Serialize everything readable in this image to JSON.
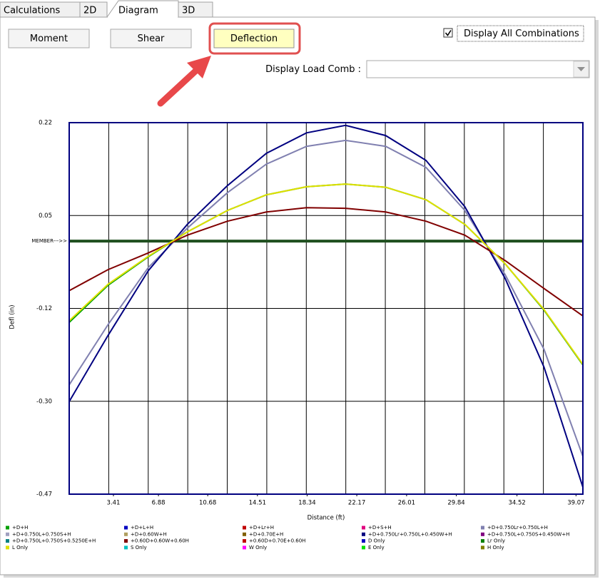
{
  "tabs": [
    {
      "label": "Calculations",
      "active": false
    },
    {
      "label": "2D",
      "active": false
    },
    {
      "label": "Diagram",
      "active": true
    },
    {
      "label": "3D",
      "active": false
    }
  ],
  "buttons": [
    {
      "label": "Moment",
      "highlighted": false
    },
    {
      "label": "Shear",
      "highlighted": false
    },
    {
      "label": "Deflection",
      "highlighted": true
    }
  ],
  "checkbox": {
    "label": "Display All Combinations",
    "checked": true
  },
  "dropdown": {
    "label": "Display Load Comb :"
  },
  "chart_data": {
    "type": "line",
    "x_label": "Distance (ft)",
    "y_label": "Defl (in)",
    "x": [
      0,
      3.0,
      6.1,
      9.1,
      12.2,
      15.2,
      18.3,
      21.3,
      24.4,
      27.5,
      30.5,
      33.6,
      36.6,
      39.6
    ],
    "xlim": [
      0,
      39.6
    ],
    "xticks": [
      3.41,
      6.88,
      10.68,
      14.51,
      18.34,
      22.17,
      26.01,
      29.84,
      34.52,
      39.07
    ],
    "ylim": [
      -0.47,
      0.22
    ],
    "yticks": [
      -0.47,
      {
        "value": -0.2975,
        "label": "-0.30"
      },
      {
        "value": -0.125,
        "label": "-0.12"
      },
      {
        "value": 0.0475,
        "label": "0.05"
      },
      0.22
    ],
    "grid": true,
    "member_line": {
      "label": "MEMBER--->>",
      "y": 0,
      "color": "#1f4f1f"
    },
    "series": [
      {
        "name": "+D+H",
        "color": "#00a000",
        "values": [
          -0.151,
          -0.082,
          -0.029,
          0.017,
          0.057,
          0.086,
          0.101,
          0.106,
          0.1,
          0.077,
          0.031,
          -0.042,
          -0.128,
          -0.23
        ]
      },
      {
        "name": "+D+L+H",
        "color": "#0000c0"
      },
      {
        "name": "+D+Lr+H",
        "color": "#c00000"
      },
      {
        "name": "+D+S+H",
        "color": "#e0007f"
      },
      {
        "name": "+D+0.750Lr+0.750L+H",
        "color": "#8080b0",
        "values": [
          -0.267,
          -0.155,
          -0.049,
          0.024,
          0.09,
          0.143,
          0.176,
          0.187,
          0.176,
          0.137,
          0.057,
          -0.062,
          -0.201,
          -0.4
        ]
      },
      {
        "name": "+D+0.750L+0.750S+H",
        "color": "#a0a0c0"
      },
      {
        "name": "+D+0.60W+H",
        "color": "#b0a060"
      },
      {
        "name": "+D+0.70E+H",
        "color": "#806000"
      },
      {
        "name": "+D+0.750Lr+0.750L+0.450W+H",
        "color": "#000080",
        "values": [
          -0.298,
          -0.175,
          -0.055,
          0.031,
          0.103,
          0.163,
          0.201,
          0.215,
          0.196,
          0.15,
          0.064,
          -0.069,
          -0.234,
          -0.457
        ]
      },
      {
        "name": "+D+0.750L+0.750S+0.450W+H",
        "color": "#800080"
      },
      {
        "name": "+D+0.750L+0.750S+0.5250E+H",
        "color": "#008080"
      },
      {
        "name": "+0.60D+0.60W+0.60H",
        "color": "#800000",
        "values": [
          -0.092,
          -0.053,
          -0.022,
          0.011,
          0.037,
          0.054,
          0.062,
          0.061,
          0.054,
          0.037,
          0.011,
          -0.036,
          -0.088,
          -0.139
        ]
      },
      {
        "name": "+0.60D+0.70E+0.60H",
        "color": "#c00000"
      },
      {
        "name": "D Only",
        "color": "#0000c0"
      },
      {
        "name": "Lr Only",
        "color": "#008000"
      },
      {
        "name": "L Only",
        "color": "#e0e000",
        "values": [
          -0.148,
          -0.08,
          -0.028,
          0.017,
          0.057,
          0.086,
          0.101,
          0.106,
          0.1,
          0.077,
          0.031,
          -0.042,
          -0.127,
          -0.229
        ]
      },
      {
        "name": "S Only",
        "color": "#00c0c0"
      },
      {
        "name": "W Only",
        "color": "#ff00ff"
      },
      {
        "name": "E Only",
        "color": "#00e000"
      },
      {
        "name": "H Only",
        "color": "#808000"
      }
    ]
  }
}
